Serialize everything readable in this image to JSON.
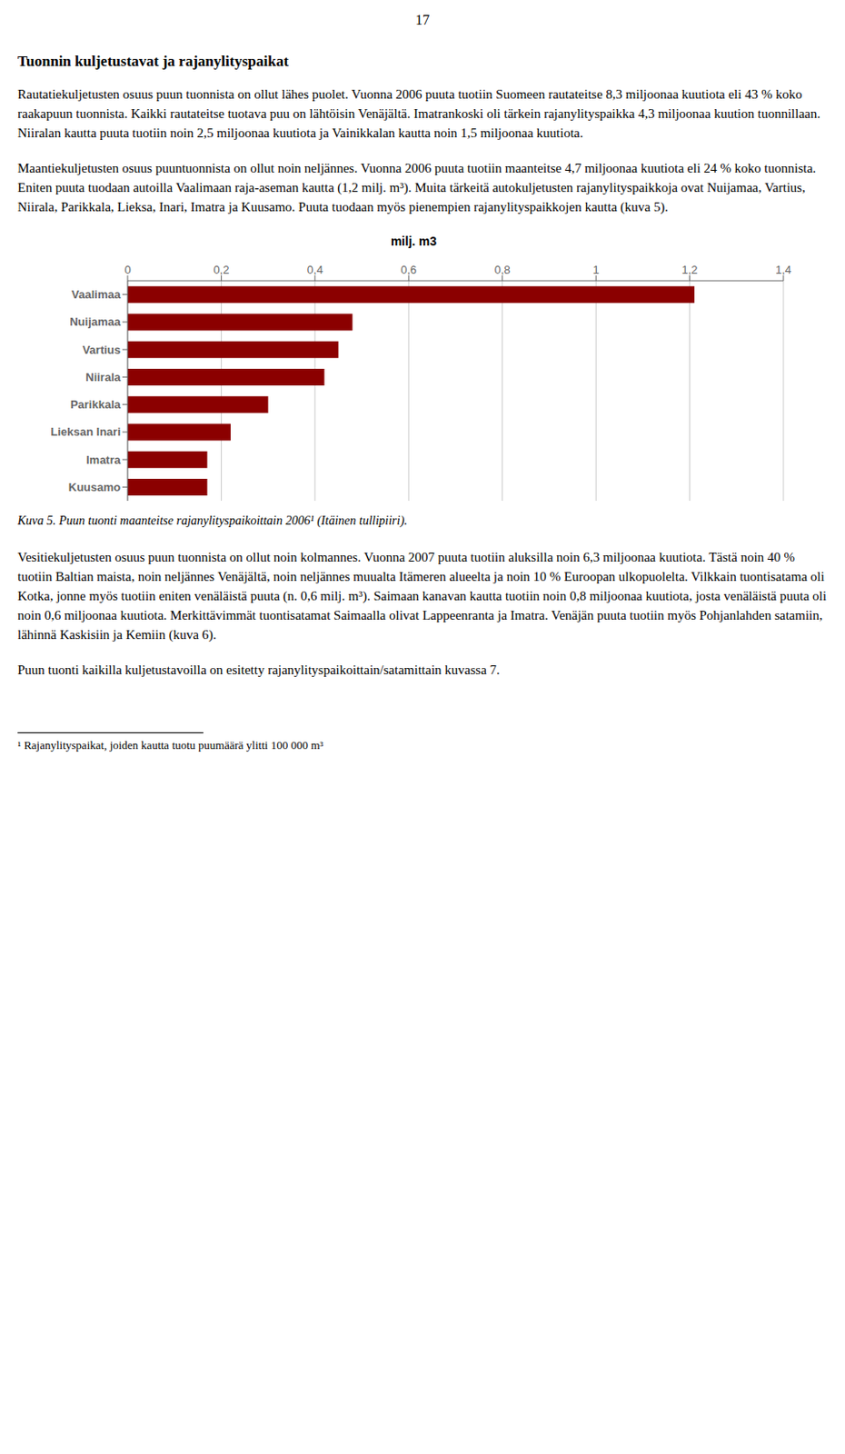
{
  "chart_data": {
    "type": "bar",
    "orientation": "horizontal",
    "xlabel": "milj. m3",
    "categories": [
      "Vaalimaa",
      "Nuijamaa",
      "Vartius",
      "Niirala",
      "Parikkala",
      "Lieksan Inari",
      "Imatra",
      "Kuusamo"
    ],
    "values": [
      1.21,
      0.48,
      0.45,
      0.42,
      0.3,
      0.22,
      0.17,
      0.17
    ],
    "color": "#8B0000",
    "xlim": [
      0,
      1.4
    ],
    "xticks": [
      0,
      {
        "value": 0.2,
        "label": "0,2"
      },
      {
        "value": 0.4,
        "label": "0,4"
      },
      {
        "value": 0.6,
        "label": "0,6"
      },
      {
        "value": 0.8,
        "label": "0,8"
      },
      1,
      {
        "value": 1.2,
        "label": "1,2"
      },
      {
        "value": 1.4,
        "label": "1,4"
      }
    ],
    "grid": true,
    "annotations": [
      "17",
      "Tuonnin kuljetustavat ja rajanylityspaikat",
      "Rautatiekuljetusten osuus puun tuonnista on ollut lähes puolet. Vuonna 2006 puuta tuotiin Suomeen rautateitse 8,3 miljoonaa kuutiota eli 43 % koko raakapuun tuonnista. Kaikki rautateitse tuotava puu on lähtöisin Venäjältä. Imatrankoski oli tärkein rajanylityspaikka 4,3 miljoonaa kuution tuonnillaan. Niiralan kautta puuta tuotiin noin 2,5 miljoonaa kuutiota ja Vainikkalan kautta noin 1,5 miljoonaa kuutiota.",
      "Maantiekuljetusten osuus puuntuonnista on ollut noin neljännes. Vuonna 2006 puuta tuotiin maanteitse 4,7 miljoonaa kuutiota eli 24 % koko tuonnista. Eniten puuta tuodaan autoilla Vaalimaan raja-aseman kautta (1,2 milj. m³). Muita tärkeitä autokuljetusten rajanylityspaikkoja ovat Nuijamaa, Vartius, Niirala, Parikkala, Lieksa, Inari, Imatra ja Kuusamo. Puuta tuodaan myös pienempien rajanylityspaikkojen kautta (kuva 5).",
      "Kuva 5. Puun tuonti maanteitse rajanylityspaikoittain 2006¹ (Itäinen tullipiiri).",
      "Vesitiekuljetusten osuus puun tuonnista on ollut noin kolmannes. Vuonna 2007 puuta tuotiin aluksilla noin 6,3 miljoonaa kuutiota. Tästä noin 40 % tuotiin Baltian maista, noin neljännes Venäjältä, noin neljännes muualta Itämeren alueelta ja noin 10 % Euroopan ulkopuolelta. Vilkkain tuontisatama oli Kotka, jonne myös tuotiin eniten venäläistä puuta (n. 0,6 milj. m³). Saimaan kanavan kautta tuotiin noin 0,8 miljoonaa kuutiota, josta venäläistä puuta oli noin 0,6 miljoonaa kuutiota. Merkittävimmät tuontisatamat Saimaalla olivat Lappeenranta ja Imatra. Venäjän puuta tuotiin myös Pohjanlahden satamiin, lähinnä Kaskisiin ja Kemiin (kuva 6).",
      "Puun tuonti kaikilla kuljetustavoilla on esitetty rajanylityspaikoittain/satamittain kuvassa 7.",
      "¹ Rajanylityspaikat, joiden kautta tuotu puumäärä ylitti 100 000 m³"
    ]
  }
}
